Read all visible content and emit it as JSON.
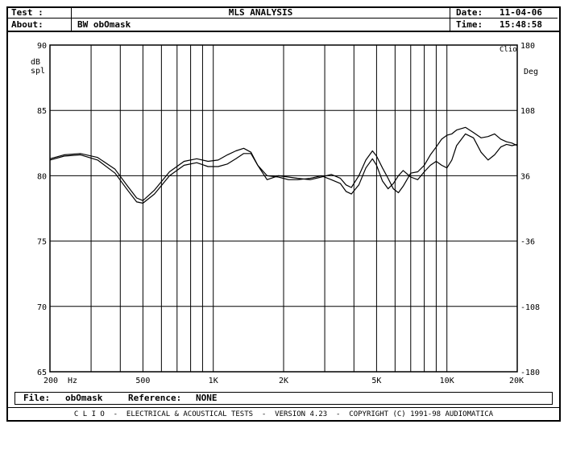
{
  "header": {
    "test_label": "Test :",
    "title": "MLS ANALYSIS",
    "date_label": "Date:",
    "date_value": "11-04-06",
    "about_label": "About:",
    "about_value": "BW obOmask",
    "time_label": "Time:",
    "time_value": "15:48:58"
  },
  "chart_data": {
    "type": "line",
    "xscale": "log",
    "xlim": [
      200,
      20000
    ],
    "ylim": [
      65,
      90
    ],
    "y2lim": [
      -180,
      180
    ],
    "ylabel_line1": "dB",
    "ylabel_line2": "spl",
    "y2label": "Deg",
    "corner_label": "Clio",
    "x_unit_label": "Hz",
    "xticks": [
      {
        "value": 200,
        "label": "200"
      },
      {
        "value": 500,
        "label": "500"
      },
      {
        "value": 1000,
        "label": "1K"
      },
      {
        "value": 2000,
        "label": "2K"
      },
      {
        "value": 5000,
        "label": "5K"
      },
      {
        "value": 10000,
        "label": "10K"
      },
      {
        "value": 20000,
        "label": "20K"
      }
    ],
    "yticks": [
      {
        "value": 90,
        "label": "90"
      },
      {
        "value": 85,
        "label": "85"
      },
      {
        "value": 80,
        "label": "80"
      },
      {
        "value": 75,
        "label": "75"
      },
      {
        "value": 70,
        "label": "70"
      },
      {
        "value": 65,
        "label": "65"
      }
    ],
    "y2ticks": [
      {
        "value": 180,
        "label": "180"
      },
      {
        "value": 108,
        "label": "108"
      },
      {
        "value": 36,
        "label": "36"
      },
      {
        "value": -36,
        "label": "-36"
      },
      {
        "value": -108,
        "label": "-108"
      },
      {
        "value": -180,
        "label": "-180"
      }
    ],
    "grid": true,
    "series": [
      {
        "x": [
          200,
          230,
          270,
          320,
          380,
          430,
          470,
          500,
          560,
          650,
          750,
          850,
          950,
          1050,
          1150,
          1250,
          1350,
          1450,
          1550,
          1700,
          1900,
          2100,
          2300,
          2600,
          2900,
          3200,
          3500,
          3700,
          3900,
          4200,
          4500,
          4800,
          5000,
          5300,
          5600,
          5900,
          6200,
          6500,
          7000,
          7500,
          8000,
          8500,
          9000,
          9500,
          10000,
          10500,
          11000,
          12000,
          13000,
          14000,
          15000,
          16000,
          17000,
          18000,
          19000,
          20000
        ],
        "y": [
          81.3,
          81.6,
          81.7,
          81.4,
          80.5,
          79.2,
          78.3,
          78.1,
          78.9,
          80.3,
          81.1,
          81.3,
          81.1,
          81.2,
          81.6,
          81.9,
          82.1,
          81.8,
          80.8,
          79.7,
          80.0,
          79.9,
          79.8,
          79.7,
          79.9,
          80.1,
          79.8,
          79.3,
          79.1,
          80.0,
          81.2,
          81.9,
          81.5,
          80.6,
          79.8,
          79.0,
          78.7,
          79.2,
          80.2,
          80.3,
          80.8,
          81.6,
          82.2,
          82.8,
          83.1,
          83.2,
          83.5,
          83.7,
          83.3,
          82.9,
          83.0,
          83.2,
          82.8,
          82.6,
          82.5,
          82.3
        ]
      },
      {
        "x": [
          200,
          230,
          270,
          320,
          380,
          430,
          470,
          500,
          560,
          650,
          750,
          850,
          950,
          1050,
          1150,
          1250,
          1350,
          1450,
          1550,
          1700,
          1900,
          2100,
          2300,
          2600,
          2900,
          3200,
          3500,
          3700,
          3900,
          4200,
          4500,
          4800,
          5000,
          5300,
          5600,
          5900,
          6200,
          6500,
          7000,
          7500,
          8000,
          8500,
          9000,
          9500,
          10000,
          10500,
          11000,
          12000,
          13000,
          14000,
          15000,
          16000,
          17000,
          18000,
          19000,
          20000
        ],
        "y": [
          81.2,
          81.5,
          81.6,
          81.2,
          80.2,
          78.9,
          78.0,
          77.9,
          78.6,
          80.0,
          80.8,
          81.0,
          80.7,
          80.7,
          80.9,
          81.3,
          81.7,
          81.7,
          80.8,
          80.0,
          79.9,
          79.7,
          79.7,
          79.8,
          80.0,
          79.7,
          79.4,
          78.8,
          78.6,
          79.3,
          80.6,
          81.3,
          80.8,
          79.6,
          79.0,
          79.4,
          80.0,
          80.4,
          79.9,
          79.7,
          80.3,
          80.8,
          81.1,
          80.8,
          80.6,
          81.2,
          82.3,
          83.2,
          82.9,
          81.8,
          81.2,
          81.6,
          82.2,
          82.4,
          82.3,
          82.4
        ]
      }
    ]
  },
  "filebar": {
    "file_label": "File:",
    "file_value": "obOmask",
    "reference_label": "Reference:",
    "reference_value": "NONE"
  },
  "footer": {
    "text": "C L I O  -  ELECTRICAL & ACOUSTICAL TESTS  -  VERSION 4.23  -  COPYRIGHT (C) 1991-98 AUDIOMATICA"
  }
}
